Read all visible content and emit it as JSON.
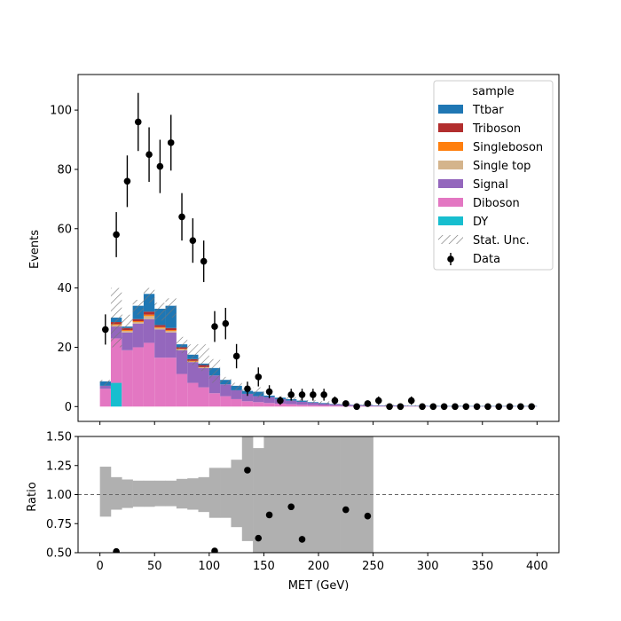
{
  "chart_data": [
    {
      "type": "bar",
      "subtype": "stacked-histogram",
      "title": "",
      "xlabel": "",
      "ylabel": "Events",
      "xlim": [
        -20,
        420
      ],
      "ylim": [
        -5,
        112
      ],
      "yticks": [
        0,
        20,
        40,
        60,
        80,
        100
      ],
      "bin_edges": [
        0,
        10,
        20,
        30,
        40,
        50,
        60,
        70,
        80,
        90,
        100,
        110,
        120,
        130,
        140,
        150,
        160,
        170,
        180,
        190,
        200,
        210,
        220,
        230,
        240,
        250,
        260,
        270,
        280,
        290,
        300,
        310,
        320,
        330,
        340,
        350,
        360,
        370,
        380,
        390,
        400
      ],
      "legend": {
        "title": "sample",
        "placement": "top-right"
      },
      "series": [
        {
          "name": "DY",
          "color": "#17becf",
          "values": [
            0,
            8,
            0,
            0,
            0,
            0,
            0,
            0,
            0,
            0,
            0,
            0,
            0,
            0,
            0,
            0,
            0,
            0,
            0,
            0,
            0,
            0,
            0,
            0,
            0,
            0,
            0,
            0,
            0,
            0,
            0,
            0,
            0,
            0,
            0,
            0,
            0,
            0,
            0,
            0
          ]
        },
        {
          "name": "Diboson",
          "color": "#e377c2",
          "values": [
            6,
            15,
            19,
            20,
            21.5,
            16.5,
            16.5,
            11,
            8,
            6.5,
            4.5,
            3.5,
            2.5,
            1.8,
            1.5,
            1.2,
            1,
            0.8,
            0.6,
            0.5,
            0.4,
            0.3,
            0.2,
            0.2,
            0.1,
            0.1,
            0.1,
            0.1,
            0.1,
            0.1,
            0,
            0,
            0,
            0,
            0,
            0,
            0,
            0,
            0,
            0
          ]
        },
        {
          "name": "Signal",
          "color": "#9467bd",
          "values": [
            1,
            4,
            6,
            8,
            8,
            9.5,
            8.5,
            8,
            7,
            6.5,
            6,
            4,
            3,
            2.5,
            2,
            2,
            1.5,
            1.2,
            1,
            0.8,
            0.6,
            0.5,
            0.4,
            0.3,
            0.3,
            0.2,
            0.2,
            0.2,
            0.1,
            0.1,
            0.1,
            0.1,
            0.1,
            0.1,
            0.1,
            0.1,
            0.1,
            0.1,
            0.1,
            0.1
          ]
        },
        {
          "name": "Single top",
          "color": "#d4b48c",
          "values": [
            0,
            0.5,
            0.5,
            0.5,
            1,
            0.5,
            0.5,
            0.3,
            0.2,
            0.2,
            0,
            0,
            0,
            0,
            0,
            0,
            0,
            0,
            0,
            0,
            0,
            0,
            0,
            0,
            0,
            0,
            0,
            0,
            0,
            0,
            0,
            0,
            0,
            0,
            0,
            0,
            0,
            0,
            0,
            0
          ]
        },
        {
          "name": "Singleboson",
          "color": "#ff7f0e",
          "values": [
            0,
            0.3,
            0.3,
            0.3,
            0.5,
            0.3,
            0.3,
            0.2,
            0.2,
            0.1,
            0,
            0,
            0,
            0,
            0,
            0,
            0,
            0,
            0,
            0,
            0,
            0,
            0,
            0,
            0,
            0,
            0,
            0,
            0,
            0,
            0,
            0,
            0,
            0,
            0,
            0,
            0,
            0,
            0,
            0
          ]
        },
        {
          "name": "Triboson",
          "color": "#b22e2e",
          "values": [
            0,
            0.7,
            0.7,
            0.7,
            1,
            0.7,
            0.7,
            0.5,
            0.6,
            0.7,
            0,
            0,
            0,
            0,
            0,
            0,
            0,
            0,
            0,
            0,
            0,
            0,
            0,
            0,
            0,
            0,
            0,
            0,
            0,
            0,
            0,
            0,
            0,
            0,
            0,
            0,
            0,
            0,
            0,
            0
          ]
        },
        {
          "name": "Ttbar",
          "color": "#1f77b4",
          "values": [
            1.5,
            1.5,
            0.5,
            4.5,
            6,
            5.5,
            7.5,
            1,
            1.5,
            0.5,
            2.5,
            1.5,
            1.5,
            1,
            1.5,
            0.5,
            0.5,
            0.5,
            0.4,
            0.2,
            0.2,
            0.1,
            0.1,
            0.1,
            0.1,
            0.1,
            0.1,
            0.1,
            0.1,
            0.1,
            0.1,
            0.1,
            0.1,
            0.1,
            0.1,
            0.1,
            0.1,
            0.1,
            0.1,
            0.1
          ]
        }
      ],
      "stat_unc": {
        "name": "Stat. Unc.",
        "hi": [
          9,
          40,
          31,
          36,
          40,
          35,
          36.5,
          23.5,
          21,
          21,
          16,
          10,
          8,
          6,
          6.5,
          4.8,
          3.5,
          3.2,
          2.8,
          2.2,
          1.8,
          1.3,
          1.1,
          0.9,
          0.9,
          0.6,
          0.6,
          0.6,
          0.5,
          0.5,
          0.4,
          0.4,
          0.4,
          0.4,
          0.3,
          0.3,
          0.3,
          0.3,
          0.3,
          0.3
        ],
        "lo": [
          7,
          20,
          26,
          31,
          35,
          29,
          30,
          18,
          14,
          12,
          8,
          7,
          5.5,
          4.5,
          3,
          4,
          2.5,
          1.8,
          1.6,
          1.1,
          0.6,
          0.5,
          0.3,
          0.3,
          0.1,
          0.1,
          0.1,
          0.1,
          0.1,
          0.1,
          0,
          0,
          0,
          0,
          0,
          0,
          0,
          0,
          0,
          0
        ]
      },
      "data": {
        "name": "Data",
        "x": [
          5,
          15,
          25,
          35,
          45,
          55,
          65,
          75,
          85,
          95,
          105,
          115,
          125,
          135,
          145,
          155,
          165,
          175,
          185,
          195,
          205,
          215,
          225,
          235,
          245,
          255,
          265,
          275,
          285,
          295,
          305,
          315,
          325,
          335,
          345,
          355,
          365,
          375,
          385,
          395
        ],
        "y": [
          26,
          58,
          76,
          96,
          85,
          81,
          89,
          64,
          56,
          49,
          27,
          28,
          17,
          6,
          10,
          5,
          2,
          4,
          4,
          4,
          4,
          2,
          1,
          0,
          1,
          2,
          0,
          0,
          2,
          0,
          0,
          0,
          0,
          0,
          0,
          0,
          0,
          0,
          0,
          0
        ],
        "yerr": [
          5.1,
          7.6,
          8.7,
          9.8,
          9.2,
          9.0,
          9.4,
          8.0,
          7.5,
          7.0,
          5.2,
          5.3,
          4.1,
          2.4,
          3.2,
          2.2,
          1.4,
          2.0,
          2.0,
          2.0,
          2.0,
          1.4,
          1.0,
          0,
          1.0,
          1.4,
          0,
          0,
          1.4,
          0,
          0,
          0,
          0,
          0,
          0,
          0,
          0,
          0,
          0,
          0
        ]
      }
    },
    {
      "type": "scatter",
      "subtype": "ratio",
      "title": "",
      "xlabel": "MET (GeV)",
      "ylabel": "Ratio",
      "xlim": [
        -20,
        420
      ],
      "ylim": [
        0.5,
        1.5
      ],
      "xticks": [
        0,
        50,
        100,
        150,
        200,
        250,
        300,
        350,
        400
      ],
      "yticks": [
        "0.50",
        "0.75",
        "1.00",
        "1.25",
        "1.50"
      ],
      "reference_line": 1.0,
      "unc_band": {
        "color": "#b0b0b0",
        "bin_edges": [
          0,
          10,
          20,
          30,
          40,
          50,
          60,
          70,
          80,
          90,
          100,
          110,
          120,
          130,
          140,
          150,
          160,
          170,
          180,
          190,
          200,
          210,
          220,
          230,
          240,
          250
        ],
        "lo": [
          0.81,
          0.87,
          0.885,
          0.895,
          0.895,
          0.9,
          0.9,
          0.88,
          0.87,
          0.85,
          0.8,
          0.8,
          0.72,
          0.6,
          0.4,
          0.4,
          0.5,
          0.3,
          0.3,
          0.3,
          0.3,
          0.5,
          0.5,
          0.5,
          0,
          0.5
        ],
        "hi": [
          1.24,
          1.15,
          1.13,
          1.12,
          1.12,
          1.12,
          1.12,
          1.135,
          1.14,
          1.15,
          1.23,
          1.23,
          1.3,
          1.6,
          1.4,
          1.6,
          1.6,
          1.6,
          1.6,
          1.6,
          1.6,
          1.5,
          1.5,
          1.5,
          1.6,
          1.5
        ]
      },
      "points": {
        "x": [
          15,
          105,
          135,
          145,
          155,
          175,
          185,
          225,
          245
        ],
        "y": [
          0.51,
          0.515,
          1.21,
          0.625,
          0.825,
          0.895,
          0.615,
          0.87,
          0.815
        ]
      }
    }
  ]
}
